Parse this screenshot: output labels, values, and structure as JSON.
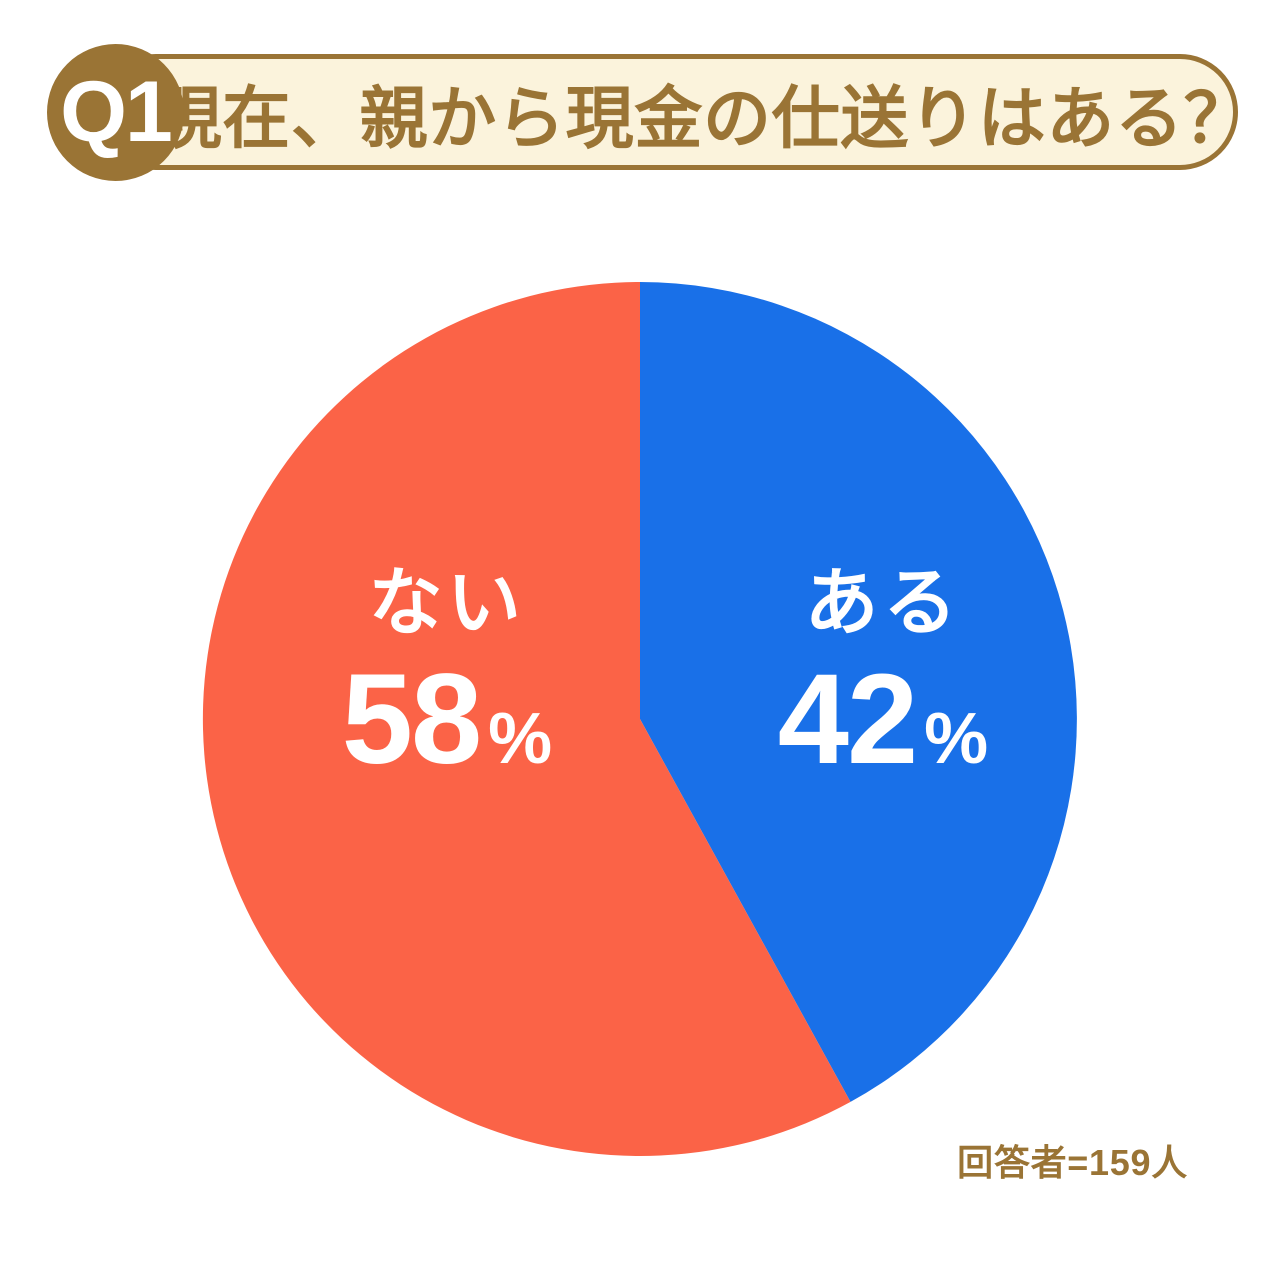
{
  "header": {
    "badge_label": "Q1",
    "question": "現在、親から現金の仕送りはある？"
  },
  "chart_data": {
    "type": "pie",
    "title": "現在、親から現金の仕送りはある？",
    "start_angle_deg": 0,
    "direction": "clockwise",
    "legend_position": "inside-slices",
    "slices": [
      {
        "key": "aru",
        "label": "ある",
        "value": 42,
        "unit": "%",
        "color": "#1970E8"
      },
      {
        "key": "nai",
        "label": "ない",
        "value": 58,
        "unit": "%",
        "color": "#FB6347"
      }
    ],
    "note": "回答者=159人"
  },
  "footer": {
    "respondents_note": "回答者=159人"
  },
  "colors": {
    "brown": "#9A7435",
    "cream": "#FBF3DC",
    "blue": "#1970E8",
    "red": "#FB6347",
    "white": "#FFFFFF"
  }
}
